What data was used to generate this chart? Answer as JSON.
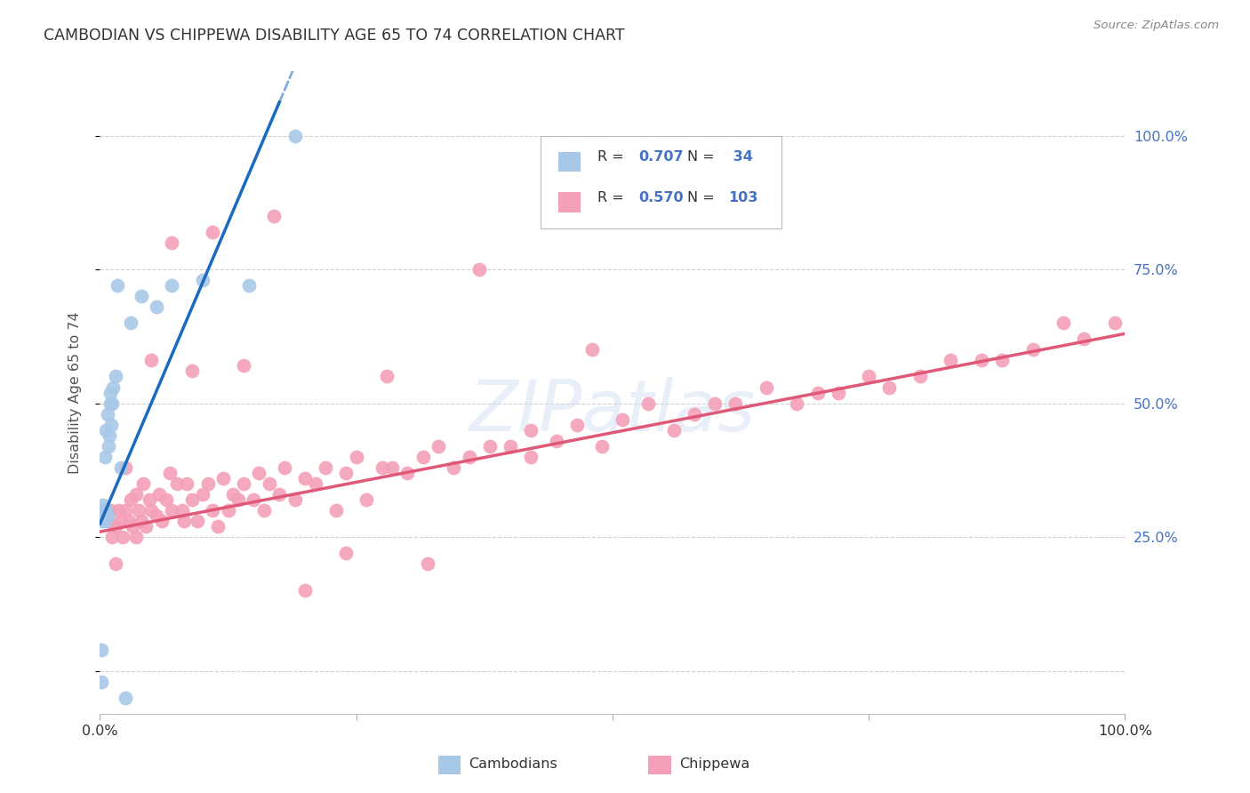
{
  "title": "CAMBODIAN VS CHIPPEWA DISABILITY AGE 65 TO 74 CORRELATION CHART",
  "source": "Source: ZipAtlas.com",
  "ylabel": "Disability Age 65 to 74",
  "xlim": [
    0.0,
    1.0
  ],
  "ylim": [
    -0.08,
    1.12
  ],
  "yticks": [
    0.0,
    0.25,
    0.5,
    0.75,
    1.0
  ],
  "ytick_labels_right": [
    "",
    "25.0%",
    "50.0%",
    "75.0%",
    "100.0%"
  ],
  "cambodian_color": "#a8c8e8",
  "chippewa_color": "#f4a0b8",
  "cambodian_line_color": "#1a6abf",
  "chippewa_line_color": "#e05878",
  "background_color": "#ffffff",
  "grid_color": "#d0d0d0",
  "watermark": "ZIPatlas",
  "cam_slope": 4.5,
  "cam_intercept": 0.275,
  "chip_slope": 0.37,
  "chip_intercept": 0.26,
  "cam_x": [
    0.001,
    0.001,
    0.002,
    0.002,
    0.003,
    0.003,
    0.003,
    0.004,
    0.004,
    0.005,
    0.005,
    0.005,
    0.006,
    0.006,
    0.007,
    0.007,
    0.008,
    0.009,
    0.01,
    0.01,
    0.011,
    0.012,
    0.013,
    0.015,
    0.017,
    0.02,
    0.025,
    0.03,
    0.04,
    0.055,
    0.07,
    0.1,
    0.145,
    0.19
  ],
  "cam_y": [
    -0.02,
    0.04,
    0.28,
    0.3,
    0.29,
    0.3,
    0.31,
    0.29,
    0.3,
    0.28,
    0.29,
    0.4,
    0.3,
    0.45,
    0.29,
    0.48,
    0.42,
    0.44,
    0.5,
    0.52,
    0.46,
    0.5,
    0.53,
    0.55,
    0.72,
    0.38,
    -0.05,
    0.65,
    0.7,
    0.68,
    0.72,
    0.73,
    0.72,
    1.0
  ],
  "chip_x": [
    0.004,
    0.008,
    0.01,
    0.012,
    0.015,
    0.018,
    0.02,
    0.022,
    0.025,
    0.028,
    0.03,
    0.032,
    0.035,
    0.038,
    0.04,
    0.042,
    0.045,
    0.048,
    0.05,
    0.055,
    0.058,
    0.06,
    0.065,
    0.068,
    0.07,
    0.075,
    0.08,
    0.082,
    0.085,
    0.09,
    0.095,
    0.1,
    0.105,
    0.11,
    0.115,
    0.12,
    0.125,
    0.13,
    0.135,
    0.14,
    0.15,
    0.155,
    0.16,
    0.165,
    0.175,
    0.18,
    0.19,
    0.2,
    0.21,
    0.22,
    0.23,
    0.24,
    0.25,
    0.26,
    0.275,
    0.285,
    0.3,
    0.315,
    0.33,
    0.345,
    0.36,
    0.38,
    0.4,
    0.42,
    0.445,
    0.465,
    0.49,
    0.51,
    0.535,
    0.56,
    0.58,
    0.6,
    0.62,
    0.65,
    0.68,
    0.7,
    0.72,
    0.75,
    0.77,
    0.8,
    0.83,
    0.86,
    0.88,
    0.91,
    0.94,
    0.96,
    0.99,
    0.015,
    0.025,
    0.035,
    0.05,
    0.07,
    0.09,
    0.11,
    0.14,
    0.17,
    0.2,
    0.24,
    0.28,
    0.32,
    0.37,
    0.42,
    0.48
  ],
  "chip_y": [
    0.29,
    0.28,
    0.3,
    0.25,
    0.27,
    0.3,
    0.28,
    0.25,
    0.3,
    0.28,
    0.32,
    0.27,
    0.33,
    0.3,
    0.28,
    0.35,
    0.27,
    0.32,
    0.3,
    0.29,
    0.33,
    0.28,
    0.32,
    0.37,
    0.3,
    0.35,
    0.3,
    0.28,
    0.35,
    0.32,
    0.28,
    0.33,
    0.35,
    0.3,
    0.27,
    0.36,
    0.3,
    0.33,
    0.32,
    0.35,
    0.32,
    0.37,
    0.3,
    0.35,
    0.33,
    0.38,
    0.32,
    0.36,
    0.35,
    0.38,
    0.3,
    0.37,
    0.4,
    0.32,
    0.38,
    0.38,
    0.37,
    0.4,
    0.42,
    0.38,
    0.4,
    0.42,
    0.42,
    0.45,
    0.43,
    0.46,
    0.42,
    0.47,
    0.5,
    0.45,
    0.48,
    0.5,
    0.5,
    0.53,
    0.5,
    0.52,
    0.52,
    0.55,
    0.53,
    0.55,
    0.58,
    0.58,
    0.58,
    0.6,
    0.65,
    0.62,
    0.65,
    0.2,
    0.38,
    0.25,
    0.58,
    0.8,
    0.56,
    0.82,
    0.57,
    0.85,
    0.15,
    0.22,
    0.55,
    0.2,
    0.75,
    0.4,
    0.6
  ]
}
